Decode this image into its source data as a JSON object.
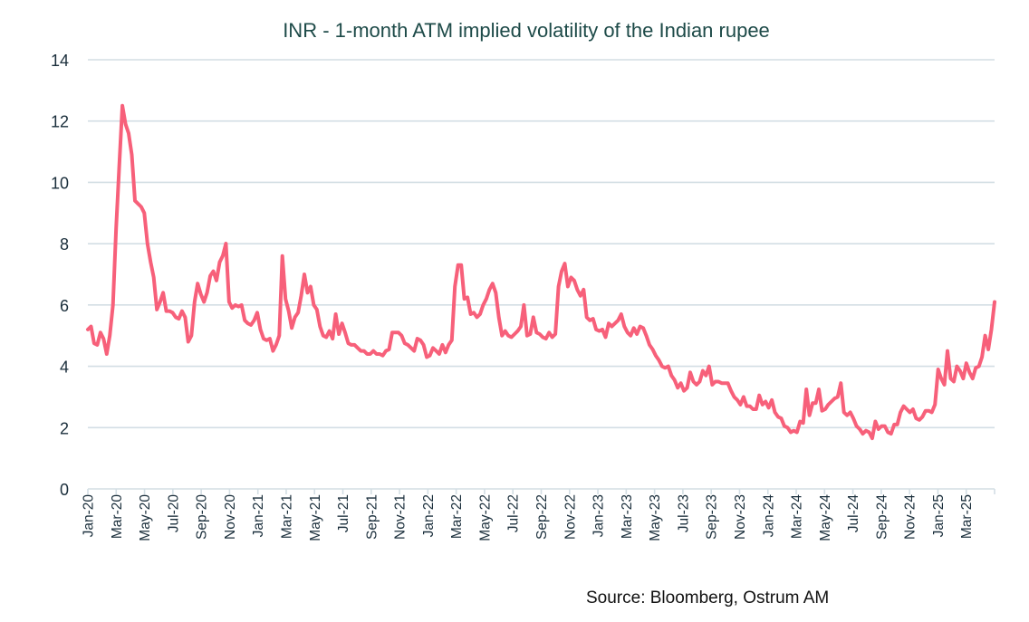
{
  "chart_data": {
    "type": "line",
    "title": "INR - 1-month ATM implied volatility of the Indian rupee",
    "xlabel": "",
    "ylabel": "",
    "ylim": [
      0,
      14
    ],
    "yticks": [
      "0",
      "2",
      "4",
      "6",
      "8",
      "10",
      "12",
      "14"
    ],
    "x_start": "Jan-20",
    "x_end": "May-25",
    "xtick_labels": [
      "Jan-20",
      "Mar-20",
      "May-20",
      "Jul-20",
      "Sep-20",
      "Nov-20",
      "Jan-21",
      "Mar-21",
      "May-21",
      "Jul-21",
      "Sep-21",
      "Nov-21",
      "Jan-22",
      "Mar-22",
      "May-22",
      "Jul-22",
      "Sep-22",
      "Nov-22",
      "Jan-23",
      "Mar-23",
      "May-23",
      "Jul-23",
      "Sep-23",
      "Nov-23",
      "Jan-24",
      "Mar-24",
      "May-24",
      "Jul-24",
      "Sep-24",
      "Nov-24",
      "Jan-25",
      "Mar-25"
    ],
    "grid": true,
    "legend": "none",
    "series": [
      {
        "name": "INR 1M ATM implied volatility",
        "color": "#f7607a",
        "values": [
          5.2,
          5.3,
          4.75,
          4.7,
          5.1,
          4.9,
          4.4,
          5.0,
          6.0,
          8.5,
          10.5,
          12.5,
          11.9,
          11.6,
          10.9,
          9.4,
          9.3,
          9.2,
          9.0,
          8.0,
          7.4,
          6.9,
          5.85,
          6.1,
          6.4,
          5.8,
          5.8,
          5.75,
          5.6,
          5.55,
          5.8,
          5.6,
          4.8,
          5.0,
          6.1,
          6.7,
          6.35,
          6.1,
          6.4,
          6.95,
          7.1,
          6.8,
          7.4,
          7.6,
          8.0,
          6.1,
          5.9,
          6.0,
          5.95,
          6.0,
          5.5,
          5.4,
          5.35,
          5.5,
          5.75,
          5.2,
          4.9,
          4.85,
          4.9,
          4.5,
          4.7,
          5.0,
          7.6,
          6.2,
          5.8,
          5.25,
          5.6,
          5.75,
          6.3,
          7.0,
          6.4,
          6.6,
          6.0,
          5.85,
          5.3,
          5.0,
          4.95,
          5.15,
          4.9,
          5.7,
          5.05,
          5.4,
          5.1,
          4.75,
          4.7,
          4.7,
          4.6,
          4.5,
          4.5,
          4.4,
          4.4,
          4.5,
          4.4,
          4.4,
          4.35,
          4.5,
          4.55,
          5.1,
          5.1,
          5.1,
          5.0,
          4.75,
          4.7,
          4.6,
          4.5,
          4.9,
          4.85,
          4.7,
          4.3,
          4.35,
          4.6,
          4.5,
          4.4,
          4.7,
          4.45,
          4.7,
          4.85,
          6.6,
          7.3,
          7.3,
          6.2,
          6.25,
          5.7,
          5.75,
          5.6,
          5.7,
          6.0,
          6.2,
          6.5,
          6.7,
          6.4,
          5.6,
          5.0,
          5.15,
          5.0,
          4.95,
          5.05,
          5.15,
          5.3,
          6.0,
          5.0,
          5.05,
          5.6,
          5.1,
          5.05,
          4.95,
          4.9,
          5.1,
          4.95,
          5.05,
          6.6,
          7.1,
          7.35,
          6.6,
          6.9,
          6.8,
          6.5,
          6.3,
          6.5,
          5.6,
          5.5,
          5.55,
          5.2,
          5.15,
          5.2,
          4.95,
          5.4,
          5.3,
          5.4,
          5.5,
          5.7,
          5.3,
          5.1,
          5.0,
          5.25,
          5.05,
          5.3,
          5.25,
          5.0,
          4.7,
          4.55,
          4.35,
          4.2,
          4.0,
          3.95,
          4.0,
          3.7,
          3.55,
          3.3,
          3.45,
          3.2,
          3.3,
          3.8,
          3.5,
          3.4,
          3.5,
          3.85,
          3.7,
          4.0,
          3.4,
          3.5,
          3.5,
          3.45,
          3.45,
          3.45,
          3.2,
          3.0,
          2.9,
          2.75,
          3.0,
          2.7,
          2.7,
          2.6,
          2.6,
          3.05,
          2.75,
          2.85,
          2.65,
          2.9,
          2.5,
          2.35,
          2.3,
          2.05,
          2.0,
          1.85,
          1.9,
          1.85,
          2.2,
          2.15,
          3.25,
          2.4,
          2.8,
          2.8,
          3.25,
          2.55,
          2.6,
          2.75,
          2.85,
          2.95,
          3.0,
          3.45,
          2.5,
          2.4,
          2.5,
          2.3,
          2.05,
          1.95,
          1.8,
          1.9,
          1.85,
          1.65,
          2.2,
          1.95,
          2.05,
          2.05,
          1.85,
          1.8,
          2.1,
          2.1,
          2.5,
          2.7,
          2.6,
          2.5,
          2.6,
          2.3,
          2.25,
          2.35,
          2.55,
          2.55,
          2.5,
          2.75,
          3.9,
          3.6,
          3.4,
          4.5,
          3.6,
          3.5,
          4.0,
          3.85,
          3.6,
          4.1,
          3.8,
          3.6,
          3.95,
          4.0,
          4.3,
          5.0,
          4.55,
          5.2,
          6.1
        ]
      }
    ]
  },
  "source": "Source: Bloomberg, Ostrum AM"
}
